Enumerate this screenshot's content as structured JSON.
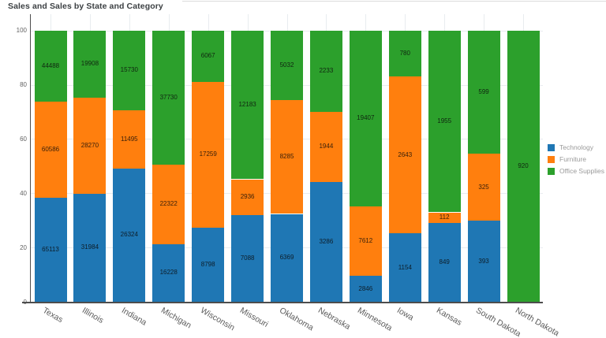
{
  "chart": {
    "title": "Sales and Sales by State and Category"
  },
  "chart_data": {
    "type": "bar",
    "stacking": "percent",
    "orientation": "vertical",
    "title": "Sales and Sales by State and Category",
    "categories": [
      "Texas",
      "Illinois",
      "Indiana",
      "Michigan",
      "Wisconsin",
      "Missouri",
      "Oklahoma",
      "Nebraska",
      "Minnesota",
      "Iowa",
      "Kansas",
      "South Dakota",
      "North Dakota"
    ],
    "series": [
      {
        "name": "Technology",
        "color": "#1f77b4",
        "values": [
          65113,
          31984,
          26324,
          16228,
          8798,
          7088,
          6369,
          3286,
          2846,
          1154,
          849,
          393,
          0
        ]
      },
      {
        "name": "Furniture",
        "color": "#ff7f0e",
        "values": [
          60586,
          28270,
          11495,
          22322,
          17259,
          2936,
          8285,
          1944,
          7612,
          2643,
          112,
          325,
          0
        ]
      },
      {
        "name": "Office Supplies",
        "color": "#2ca02c",
        "values": [
          44488,
          19908,
          15730,
          37730,
          6067,
          12183,
          5032,
          2233,
          19407,
          780,
          1955,
          599,
          920
        ]
      }
    ],
    "y_ticks": [
      0,
      20,
      40,
      60,
      80,
      100
    ],
    "ylim": [
      0,
      100
    ],
    "grid": true,
    "value_labels": "raw segment values shown inside bars",
    "legend_position": "right",
    "xlabel_angle_deg": 30
  }
}
